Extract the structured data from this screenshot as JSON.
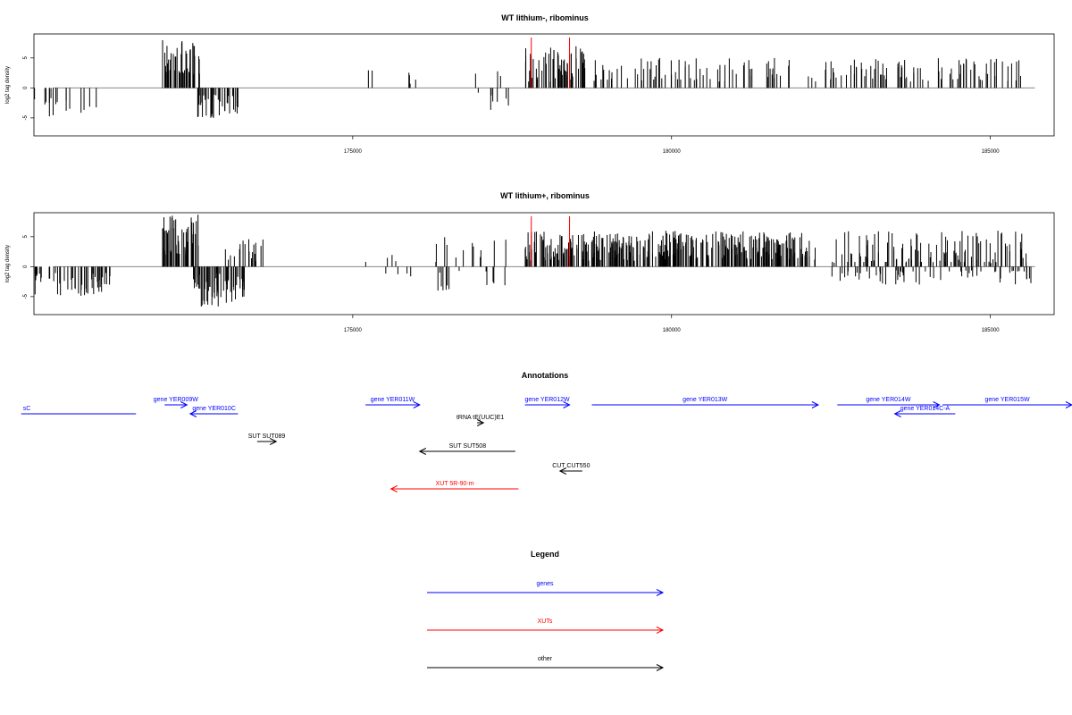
{
  "chart_data": [
    {
      "type": "bar",
      "title": "WT lithium-, ribominus",
      "ylabel": "log2 tag density",
      "xlim": [
        170000,
        186000
      ],
      "ylim": [
        -8,
        9
      ],
      "x_ticks": [
        175000,
        180000,
        185000
      ],
      "y_ticks": [
        -5,
        0,
        5
      ],
      "y_tick_labels": [
        "-5",
        "0",
        "5"
      ],
      "markers": [
        177800,
        178400
      ],
      "marker_color": "#ff0000",
      "bar_color": "#000000",
      "segments": [
        {
          "from": 170000,
          "to": 171100,
          "count": 16,
          "min": -5,
          "max": -1
        },
        {
          "from": 172000,
          "to": 172600,
          "count": 45,
          "min": 2,
          "max": 8
        },
        {
          "from": 172550,
          "to": 173200,
          "count": 40,
          "min": -5,
          "max": -1
        },
        {
          "from": 175200,
          "to": 176000,
          "count": 6,
          "min": -2,
          "max": 3
        },
        {
          "from": 176900,
          "to": 177500,
          "count": 10,
          "min": -4,
          "max": 3
        },
        {
          "from": 177700,
          "to": 178650,
          "count": 60,
          "min": 1,
          "max": 7
        },
        {
          "from": 178700,
          "to": 185600,
          "count": 160,
          "min": 1,
          "max": 5
        }
      ]
    },
    {
      "type": "bar",
      "title": "WT lithium+, ribominus",
      "ylabel": "log2 tag density",
      "xlim": [
        170000,
        186000
      ],
      "ylim": [
        -8,
        9
      ],
      "x_ticks": [
        175000,
        180000,
        185000
      ],
      "y_ticks": [
        -5,
        0,
        5
      ],
      "y_tick_labels": [
        "-5",
        "0",
        "5"
      ],
      "markers": [
        177800,
        178400
      ],
      "marker_color": "#ff0000",
      "bar_color": "#000000",
      "segments": [
        {
          "from": 170000,
          "to": 171200,
          "count": 50,
          "min": -5,
          "max": -1
        },
        {
          "from": 172000,
          "to": 172600,
          "count": 50,
          "min": 2,
          "max": 9
        },
        {
          "from": 172500,
          "to": 173300,
          "count": 60,
          "min": -7,
          "max": -1
        },
        {
          "from": 173000,
          "to": 173600,
          "count": 18,
          "min": 1,
          "max": 5
        },
        {
          "from": 175200,
          "to": 176200,
          "count": 8,
          "min": -2,
          "max": 2
        },
        {
          "from": 176300,
          "to": 177500,
          "count": 25,
          "min": -4,
          "max": 5
        },
        {
          "from": 177700,
          "to": 182300,
          "count": 360,
          "min": 1,
          "max": 6
        },
        {
          "from": 182500,
          "to": 185700,
          "count": 170,
          "min": -3,
          "max": 6
        }
      ]
    }
  ],
  "annotations": {
    "title": "Annotations",
    "xlim": [
      170000,
      186000
    ],
    "colors": {
      "genes": "#0000ff",
      "XUTs": "#ff0000",
      "other": "#000000"
    },
    "features": [
      {
        "label": "sC",
        "x_from": 169800,
        "x_to": 171600,
        "row": 1,
        "dir": "none",
        "kind": "genes",
        "label_at": "start"
      },
      {
        "label": "gene YER009W",
        "x_from": 172050,
        "x_to": 172400,
        "row": 0,
        "dir": "right",
        "kind": "genes"
      },
      {
        "label": "gene YER010C",
        "x_from": 172450,
        "x_to": 173200,
        "row": 1,
        "dir": "left",
        "kind": "genes"
      },
      {
        "label": "SUT SUT089",
        "x_from": 173500,
        "x_to": 173800,
        "row": 3,
        "dir": "right",
        "kind": "other"
      },
      {
        "label": "gene YER011W",
        "x_from": 175200,
        "x_to": 176050,
        "row": 0,
        "dir": "right",
        "kind": "genes"
      },
      {
        "label": "tRNA tE(UUC)E1",
        "x_from": 176950,
        "x_to": 177050,
        "row": 2,
        "dir": "right",
        "kind": "other"
      },
      {
        "label": "SUT SUT508",
        "x_from": 176050,
        "x_to": 177550,
        "row": 4,
        "dir": "left",
        "kind": "other"
      },
      {
        "label": "XUT 5R-90-m",
        "x_from": 175600,
        "x_to": 177600,
        "row": 6,
        "dir": "left",
        "kind": "XUTs"
      },
      {
        "label": "gene YER012W",
        "x_from": 177700,
        "x_to": 178400,
        "row": 0,
        "dir": "right",
        "kind": "genes"
      },
      {
        "label": "CUT CUT550",
        "x_from": 178250,
        "x_to": 178600,
        "row": 5,
        "dir": "left",
        "kind": "other"
      },
      {
        "label": "gene YER013W",
        "x_from": 178750,
        "x_to": 182300,
        "row": 0,
        "dir": "right",
        "kind": "genes"
      },
      {
        "label": "gene YER014W",
        "x_from": 182600,
        "x_to": 184200,
        "row": 0,
        "dir": "right",
        "kind": "genes"
      },
      {
        "label": "gene YER014C-A",
        "x_from": 183500,
        "x_to": 184450,
        "row": 1,
        "dir": "left",
        "kind": "genes"
      },
      {
        "label": "gene YER015W",
        "x_from": 184250,
        "x_to": 186600,
        "row": 0,
        "dir": "right",
        "kind": "genes"
      }
    ]
  },
  "legend": {
    "title": "Legend",
    "items": [
      {
        "label": "genes",
        "color": "#0000ff"
      },
      {
        "label": "XUTs",
        "color": "#ff0000"
      },
      {
        "label": "other",
        "color": "#000000"
      }
    ]
  }
}
